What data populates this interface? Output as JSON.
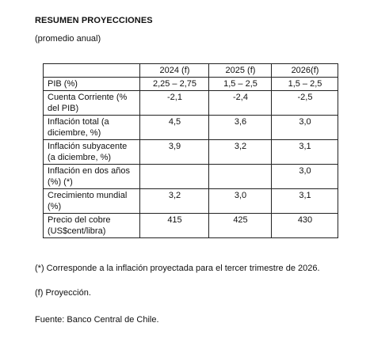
{
  "title": "RESUMEN PROYECCIONES",
  "subtitle": "(promedio anual)",
  "table": {
    "headers": [
      "",
      "2024 (f)",
      "2025 (f)",
      "2026(f)"
    ],
    "rows": [
      {
        "label": "PIB (%)",
        "values": [
          "2,25 – 2,75",
          "1,5 – 2,5",
          "1,5 – 2,5"
        ]
      },
      {
        "label": "Cuenta Corriente (% del PIB)",
        "values": [
          "-2,1",
          "-2,4",
          "-2,5"
        ]
      },
      {
        "label": "Inflación total (a diciembre, %)",
        "values": [
          "4,5",
          "3,6",
          "3,0"
        ]
      },
      {
        "label": "Inflación subyacente (a diciembre, %)",
        "values": [
          "3,9",
          "3,2",
          "3,1"
        ]
      },
      {
        "label": "Inflación en dos años (%) (*)",
        "values": [
          "",
          "",
          "3,0"
        ]
      },
      {
        "label": "Crecimiento mundial (%)",
        "values": [
          "3,2",
          "3,0",
          "3,1"
        ]
      },
      {
        "label": "Precio del cobre (US$cent/libra)",
        "values": [
          "415",
          "425",
          "430"
        ]
      }
    ]
  },
  "notes": {
    "asterisk": "(*) Corresponde a la inflación proyectada para el tercer trimestre de 2026.",
    "forecast": "(f) Proyección.",
    "source": "Fuente: Banco Central de Chile."
  }
}
